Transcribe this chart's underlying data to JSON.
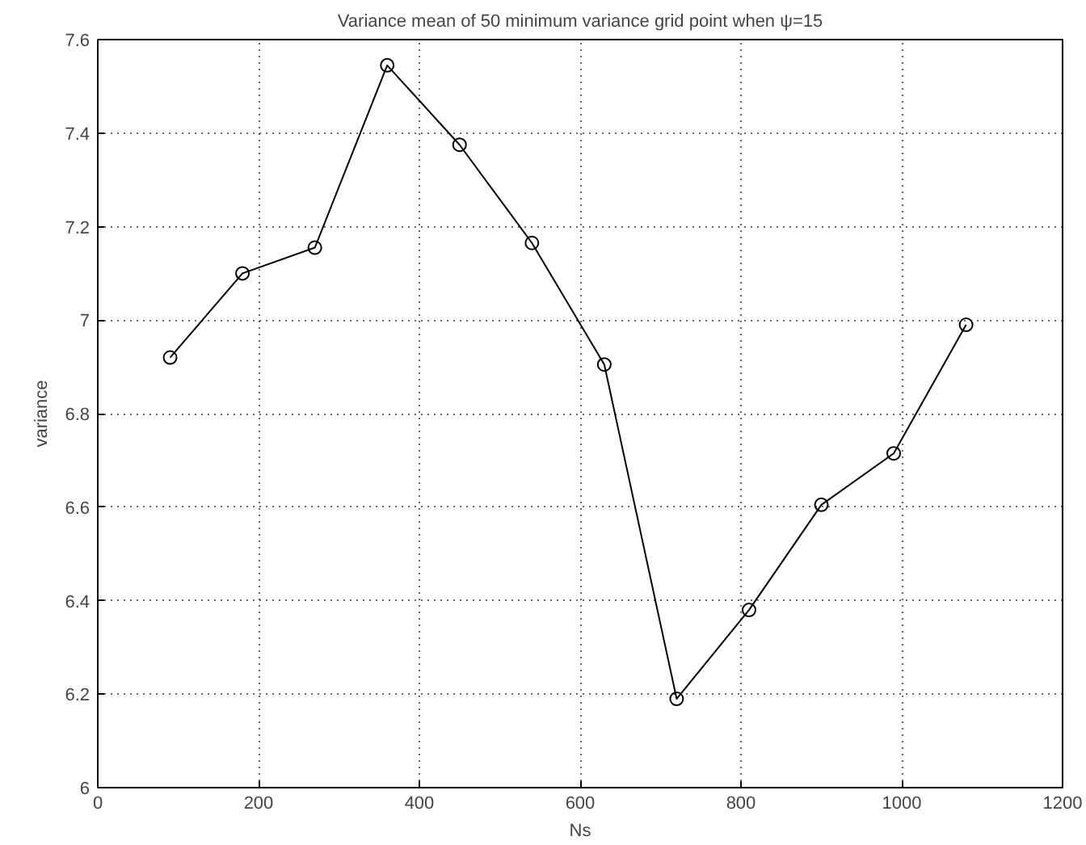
{
  "chart_data": {
    "type": "line",
    "title": "Variance mean of 50 minimum variance grid point when ψ=15",
    "xlabel": "Ns",
    "ylabel": "variance",
    "x": [
      90,
      180,
      270,
      360,
      450,
      540,
      630,
      720,
      810,
      900,
      990,
      1080
    ],
    "series": [
      {
        "color": "#000000",
        "values": [
          6.92,
          7.1,
          7.155,
          7.545,
          7.375,
          7.165,
          6.905,
          6.19,
          6.38,
          6.605,
          6.715,
          6.99
        ]
      }
    ],
    "xlim": [
      0,
      1200
    ],
    "xticks": [
      0,
      200,
      400,
      600,
      800,
      1000,
      1200
    ],
    "ylim": [
      6,
      7.6
    ],
    "yticks": [
      6,
      6.2,
      6.4,
      6.6,
      6.8,
      7,
      7.2,
      7.4,
      7.6
    ],
    "grid": true,
    "marker": "circle",
    "line_style": "solid"
  }
}
